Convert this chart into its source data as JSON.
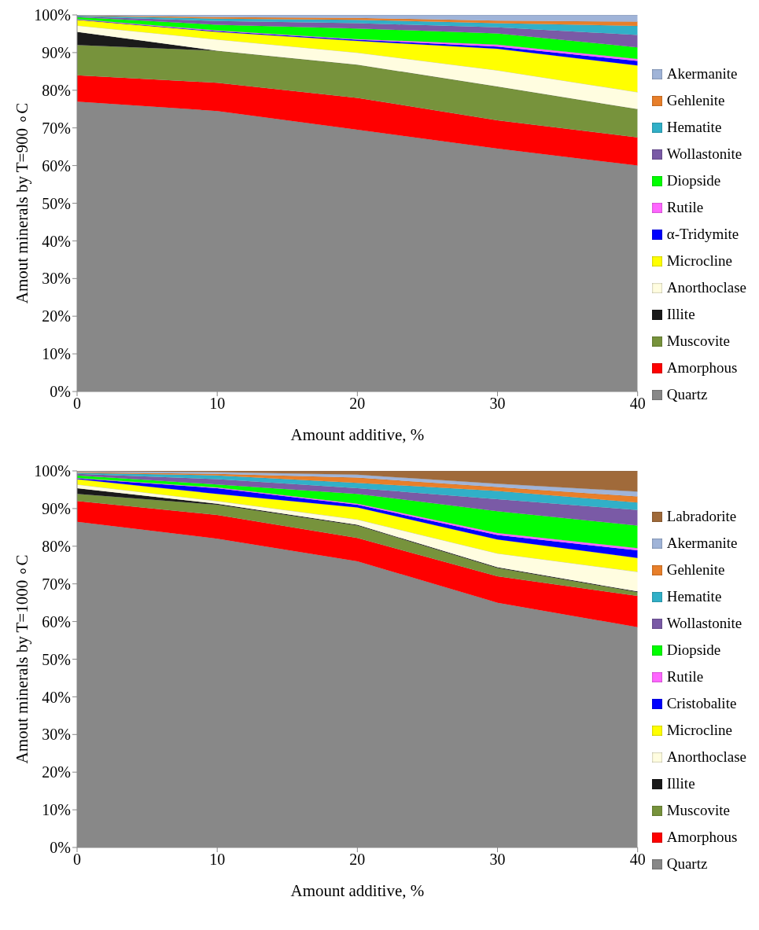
{
  "chart_data": [
    {
      "type": "area",
      "stacked": true,
      "xlabel": "Amount additive, %",
      "ylabel": "Amout minerals by T=900 ∘C",
      "x": [
        0,
        10,
        20,
        30,
        40
      ],
      "xlim": [
        0,
        40
      ],
      "xticks": [
        0,
        10,
        20,
        30,
        40
      ],
      "ylim": [
        0,
        100
      ],
      "yticks": [
        {
          "value": 0,
          "label": "0%"
        },
        {
          "value": 10,
          "label": "10%"
        },
        {
          "value": 20,
          "label": "20%"
        },
        {
          "value": 30,
          "label": "30%"
        },
        {
          "value": 40,
          "label": "40%"
        },
        {
          "value": 50,
          "label": "50%"
        },
        {
          "value": 60,
          "label": "60%"
        },
        {
          "value": 70,
          "label": "70%"
        },
        {
          "value": 80,
          "label": "80%"
        },
        {
          "value": 90,
          "label": "90%"
        },
        {
          "value": 100,
          "label": "100%"
        }
      ],
      "grid": false,
      "legend": "right",
      "series": [
        {
          "name": "Quartz",
          "color": "#888888",
          "values": [
            77,
            74.5,
            69.5,
            64.5,
            60
          ]
        },
        {
          "name": "Amorphous",
          "color": "#ff0000",
          "values": [
            7,
            7.5,
            8.5,
            7.5,
            7.5
          ]
        },
        {
          "name": "Muscovite",
          "color": "#77933c",
          "values": [
            8,
            8.5,
            8.8,
            9,
            7.5
          ]
        },
        {
          "name": "Illite",
          "color": "#1a1a1a",
          "values": [
            3.5,
            0,
            0,
            0,
            0
          ]
        },
        {
          "name": "Anorthoclase",
          "color": "#fffde0",
          "values": [
            1.7,
            3,
            3.2,
            4.3,
            4.5
          ]
        },
        {
          "name": "Microcline",
          "color": "#ffff00",
          "values": [
            1.5,
            2,
            3.1,
            5.7,
            7.1
          ]
        },
        {
          "name": "α-Tridymite",
          "color": "#0000ff",
          "values": [
            0.1,
            0.2,
            0.3,
            0.6,
            1.2
          ]
        },
        {
          "name": "Rutile",
          "color": "#ff66ff",
          "values": [
            0.1,
            0.2,
            0.2,
            0.5,
            0.5
          ]
        },
        {
          "name": "Diopside",
          "color": "#00ff00",
          "values": [
            0.5,
            1.5,
            2.8,
            3,
            3.1
          ]
        },
        {
          "name": "Wollastonite",
          "color": "#7a5aa6",
          "values": [
            0.2,
            1,
            1.4,
            1.6,
            3.3
          ]
        },
        {
          "name": "Hematite",
          "color": "#31b0c8",
          "values": [
            0.2,
            0.6,
            0.9,
            1.1,
            2.4
          ]
        },
        {
          "name": "Gehlenite",
          "color": "#e87f2a",
          "values": [
            0.1,
            0.4,
            0.5,
            0.7,
            1.1
          ]
        },
        {
          "name": "Akermanite",
          "color": "#a0b4d8",
          "values": [
            0.1,
            0.6,
            0.8,
            1.5,
            1.8
          ]
        }
      ]
    },
    {
      "type": "area",
      "stacked": true,
      "xlabel": "Amount additive, %",
      "ylabel": "Amout minerals by T=1000 ∘C",
      "x": [
        0,
        10,
        20,
        30,
        40
      ],
      "xlim": [
        0,
        40
      ],
      "xticks": [
        0,
        10,
        20,
        30,
        40
      ],
      "ylim": [
        0,
        100
      ],
      "yticks": [
        {
          "value": 0,
          "label": "0%"
        },
        {
          "value": 10,
          "label": "10%"
        },
        {
          "value": 20,
          "label": "20%"
        },
        {
          "value": 30,
          "label": "30%"
        },
        {
          "value": 40,
          "label": "40%"
        },
        {
          "value": 50,
          "label": "50%"
        },
        {
          "value": 60,
          "label": "60%"
        },
        {
          "value": 70,
          "label": "70%"
        },
        {
          "value": 80,
          "label": "80%"
        },
        {
          "value": 90,
          "label": "90%"
        },
        {
          "value": 100,
          "label": "100%"
        }
      ],
      "grid": false,
      "legend": "right",
      "series": [
        {
          "name": "Quartz",
          "color": "#888888",
          "values": [
            86.5,
            82,
            76,
            65,
            58.5
          ]
        },
        {
          "name": "Amorphous",
          "color": "#ff0000",
          "values": [
            5.5,
            6.3,
            6.2,
            7,
            8.3
          ]
        },
        {
          "name": "Muscovite",
          "color": "#77933c",
          "values": [
            1.9,
            2.7,
            3.3,
            2.2,
            1
          ]
        },
        {
          "name": "Illite",
          "color": "#1a1a1a",
          "values": [
            1.5,
            0.3,
            0.2,
            0.2,
            0.2
          ]
        },
        {
          "name": "Anorthoclase",
          "color": "#fffde0",
          "values": [
            1,
            0.7,
            1.4,
            3.7,
            5.2
          ]
        },
        {
          "name": "Microcline",
          "color": "#ffff00",
          "values": [
            1.4,
            1.9,
            3.2,
            3.7,
            3.7
          ]
        },
        {
          "name": "Cristobalite",
          "color": "#0000ff",
          "values": [
            0.2,
            1.5,
            0.7,
            1.2,
            2
          ]
        },
        {
          "name": "Rutile",
          "color": "#ff66ff",
          "values": [
            0.1,
            0.2,
            0.3,
            0.5,
            0.6
          ]
        },
        {
          "name": "Diopside",
          "color": "#00ff00",
          "values": [
            0.7,
            0.8,
            2.6,
            5.8,
            6
          ]
        },
        {
          "name": "Wollastonite",
          "color": "#7a5aa6",
          "values": [
            0.4,
            1.4,
            1.5,
            3.2,
            4.1
          ]
        },
        {
          "name": "Hematite",
          "color": "#31b0c8",
          "values": [
            0.3,
            1,
            1.4,
            2.2,
            2
          ]
        },
        {
          "name": "Gehlenite",
          "color": "#e87f2a",
          "values": [
            0.2,
            0.4,
            1.4,
            1,
            1.6
          ]
        },
        {
          "name": "Akermanite",
          "color": "#a0b4d8",
          "values": [
            0.2,
            0.5,
            0.8,
            0.9,
            1.3
          ]
        },
        {
          "name": "Labradorite",
          "color": "#a06a3a",
          "values": [
            0.1,
            0.3,
            1,
            3.4,
            5.5
          ]
        }
      ]
    }
  ]
}
